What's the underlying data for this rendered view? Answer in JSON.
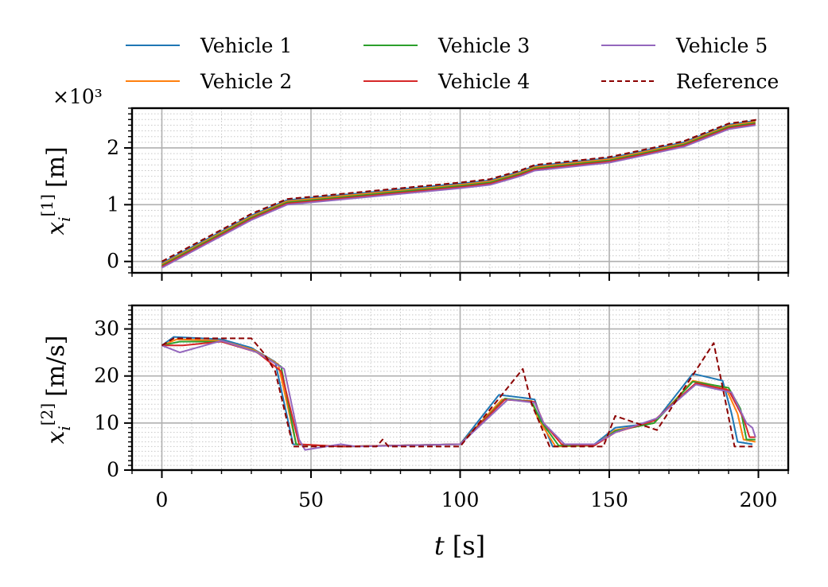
{
  "legend": {
    "items": [
      {
        "label": "Vehicle 1",
        "color": "#1f77b4",
        "dash": "solid"
      },
      {
        "label": "Vehicle 2",
        "color": "#ff7f0e",
        "dash": "solid"
      },
      {
        "label": "Vehicle 3",
        "color": "#2ca02c",
        "dash": "solid"
      },
      {
        "label": "Vehicle 4",
        "color": "#d62728",
        "dash": "solid"
      },
      {
        "label": "Vehicle 5",
        "color": "#9467bd",
        "dash": "solid"
      },
      {
        "label": "Reference",
        "color": "#8b0000",
        "dash": "dashed"
      }
    ]
  },
  "chart_data": [
    {
      "type": "line",
      "title": "",
      "xlabel": "",
      "ylabel_main": "x",
      "ylabel_sub": "i",
      "ylabel_sup": "[1]",
      "ylabel_unit": "[m]",
      "offset_label": "×10³",
      "xlim": [
        -10,
        210
      ],
      "ylim": [
        -0.2,
        2.7
      ],
      "yticks": [
        0,
        1,
        2
      ],
      "ytick_labels": [
        "0",
        "1",
        "2"
      ],
      "grid": true,
      "series": [
        {
          "name": "Reference",
          "x": [
            0,
            20,
            30,
            42,
            60,
            80,
            100,
            110,
            120,
            125,
            150,
            160,
            175,
            190,
            200
          ],
          "y": [
            0.0,
            0.56,
            0.84,
            1.1,
            1.19,
            1.29,
            1.39,
            1.45,
            1.6,
            1.7,
            1.84,
            1.95,
            2.12,
            2.43,
            2.5
          ]
        },
        {
          "name": "Vehicle 1",
          "x": [
            0,
            20,
            30,
            42,
            60,
            80,
            100,
            110,
            120,
            125,
            150,
            160,
            175,
            190,
            199
          ],
          "y": [
            -0.03,
            0.53,
            0.81,
            1.08,
            1.17,
            1.27,
            1.37,
            1.43,
            1.58,
            1.68,
            1.82,
            1.93,
            2.1,
            2.41,
            2.48
          ]
        },
        {
          "name": "Vehicle 2",
          "x": [
            0,
            20,
            30,
            42,
            60,
            80,
            100,
            110,
            120,
            125,
            150,
            160,
            175,
            190,
            199
          ],
          "y": [
            -0.05,
            0.51,
            0.79,
            1.06,
            1.15,
            1.25,
            1.35,
            1.41,
            1.56,
            1.66,
            1.8,
            1.91,
            2.08,
            2.39,
            2.46
          ]
        },
        {
          "name": "Vehicle 3",
          "x": [
            0,
            20,
            30,
            42,
            60,
            80,
            100,
            110,
            120,
            125,
            150,
            160,
            175,
            190,
            199
          ],
          "y": [
            -0.07,
            0.49,
            0.77,
            1.04,
            1.13,
            1.23,
            1.33,
            1.39,
            1.54,
            1.64,
            1.78,
            1.89,
            2.06,
            2.37,
            2.44
          ]
        },
        {
          "name": "Vehicle 4",
          "x": [
            0,
            20,
            30,
            42,
            60,
            80,
            100,
            110,
            120,
            125,
            150,
            160,
            175,
            190,
            199
          ],
          "y": [
            -0.09,
            0.47,
            0.75,
            1.02,
            1.11,
            1.21,
            1.31,
            1.37,
            1.52,
            1.62,
            1.76,
            1.87,
            2.04,
            2.35,
            2.42
          ]
        },
        {
          "name": "Vehicle 5",
          "x": [
            0,
            20,
            30,
            42,
            60,
            80,
            100,
            110,
            120,
            125,
            150,
            160,
            175,
            190,
            199
          ],
          "y": [
            -0.11,
            0.45,
            0.73,
            1.0,
            1.09,
            1.19,
            1.29,
            1.35,
            1.5,
            1.6,
            1.74,
            1.85,
            2.02,
            2.33,
            2.4
          ]
        }
      ]
    },
    {
      "type": "line",
      "title": "",
      "xlabel_main": "t",
      "xlabel_unit": "[s]",
      "ylabel_main": "x",
      "ylabel_sub": "i",
      "ylabel_sup": "[2]",
      "ylabel_unit": "[m/s]",
      "xlim": [
        -10,
        210
      ],
      "ylim": [
        0,
        35
      ],
      "xticks": [
        0,
        50,
        100,
        150,
        200
      ],
      "xtick_labels": [
        "0",
        "50",
        "100",
        "150",
        "200"
      ],
      "yticks": [
        0,
        10,
        20,
        30
      ],
      "ytick_labels": [
        "0",
        "10",
        "20",
        "30"
      ],
      "grid": true,
      "series": [
        {
          "name": "Reference",
          "x": [
            0,
            4,
            30,
            34,
            38,
            44,
            72,
            74,
            76,
            100,
            121,
            124,
            130,
            148,
            152,
            166,
            185,
            192,
            198
          ],
          "y": [
            26.5,
            28,
            28,
            25,
            21,
            5,
            5,
            6.5,
            5,
            5,
            21.5,
            14,
            5,
            5,
            11.5,
            8.5,
            27,
            5,
            5
          ]
        },
        {
          "name": "Vehicle 1",
          "x": [
            0,
            4,
            20,
            30,
            38,
            44,
            60,
            100,
            113,
            122,
            125,
            127,
            131,
            145,
            152,
            165,
            178,
            188,
            191,
            193,
            198
          ],
          "y": [
            26.5,
            28.3,
            27.8,
            26,
            23,
            5.5,
            5,
            5.5,
            16,
            15.3,
            15,
            11,
            5,
            5.5,
            9,
            10,
            20.5,
            19,
            12,
            6,
            5.5
          ]
        },
        {
          "name": "Vehicle 2",
          "x": [
            0,
            5,
            20,
            31,
            39,
            45,
            60,
            100,
            114,
            124,
            126,
            132,
            145,
            152,
            165,
            178,
            189,
            193,
            195,
            199
          ],
          "y": [
            26.5,
            27.8,
            27.5,
            25.5,
            22.5,
            5.5,
            5,
            5.5,
            15,
            14.7,
            11,
            5,
            5.2,
            8.5,
            10,
            19,
            17.5,
            12,
            6.5,
            6
          ]
        },
        {
          "name": "Vehicle 3",
          "x": [
            0,
            6,
            20,
            31,
            40,
            45,
            60,
            100,
            115,
            124,
            127,
            133,
            145,
            152,
            165,
            178,
            190,
            194,
            196,
            199
          ],
          "y": [
            26.5,
            27.3,
            27.3,
            25.3,
            22,
            5.5,
            5,
            5.5,
            15.2,
            14.6,
            10.5,
            5.2,
            5.2,
            8.3,
            10,
            18.8,
            17.5,
            13,
            6.5,
            6.5
          ]
        },
        {
          "name": "Vehicle 4",
          "x": [
            0,
            7,
            20,
            32,
            40,
            46,
            60,
            100,
            115,
            125,
            128,
            134,
            145,
            152,
            165,
            179,
            190,
            195,
            197,
            199
          ],
          "y": [
            26.5,
            26.5,
            27.3,
            25,
            21,
            5.5,
            5,
            5.5,
            15,
            14.5,
            10,
            5.5,
            5.2,
            8,
            10.5,
            18.5,
            17,
            11,
            7,
            7
          ]
        },
        {
          "name": "Vehicle 5",
          "x": [
            0,
            6,
            20,
            32,
            41,
            46,
            48,
            55,
            60,
            65,
            100,
            116,
            125,
            128,
            135,
            145,
            152,
            166,
            179,
            191,
            196,
            198,
            199
          ],
          "y": [
            26.5,
            25,
            27.5,
            25,
            21.5,
            6.5,
            4.3,
            5,
            5.5,
            5,
            5.5,
            15,
            14.3,
            10,
            5.5,
            5.5,
            8,
            11,
            18.2,
            16.5,
            10,
            9,
            7
          ]
        }
      ]
    }
  ]
}
